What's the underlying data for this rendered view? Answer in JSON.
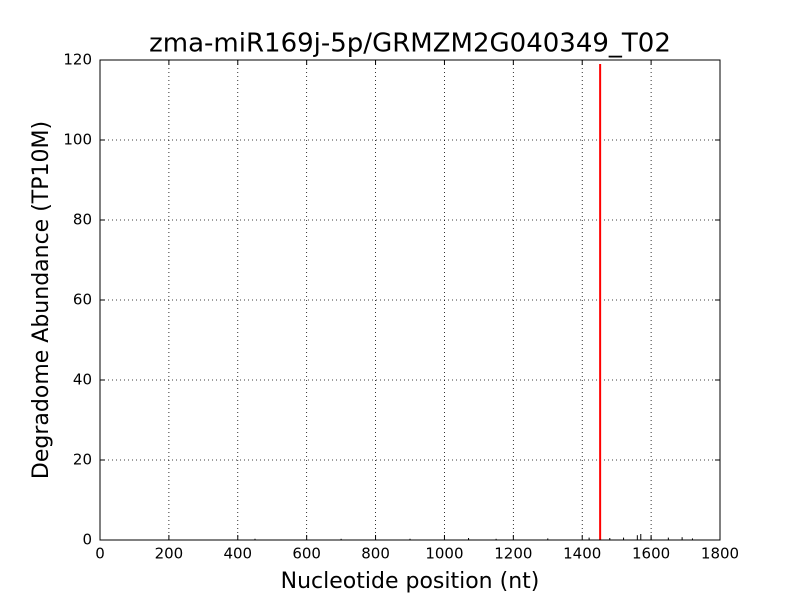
{
  "chart_data": {
    "type": "stem",
    "title": "zma-miR169j-5p/GRMZM2G040349_T02",
    "x_label": "Nucleotide position (nt)",
    "y_label": "Degradome Abundance (TP10M)",
    "xlim": [
      0,
      1800
    ],
    "xticks": [
      0,
      200,
      400,
      600,
      800,
      1000,
      1200,
      1400,
      1600,
      1800
    ],
    "ylim": [
      0,
      120
    ],
    "yticks": [
      0,
      20,
      40,
      60,
      80,
      100,
      120
    ],
    "grid": true,
    "series": [
      {
        "color": "#000000",
        "x": [
          450,
          700,
          900,
          1070,
          1150,
          1300,
          1420,
          1480,
          1520,
          1560,
          1570,
          1600,
          1650,
          1690,
          1720
        ],
        "values": [
          0.3,
          0.3,
          0.3,
          0.5,
          0.3,
          0.4,
          0.6,
          0.5,
          0.6,
          1.2,
          1.5,
          0.8,
          0.6,
          0.7,
          0.4
        ]
      },
      {
        "color": "#ff0000",
        "x": [
          1452
        ],
        "values": [
          119
        ]
      }
    ]
  }
}
